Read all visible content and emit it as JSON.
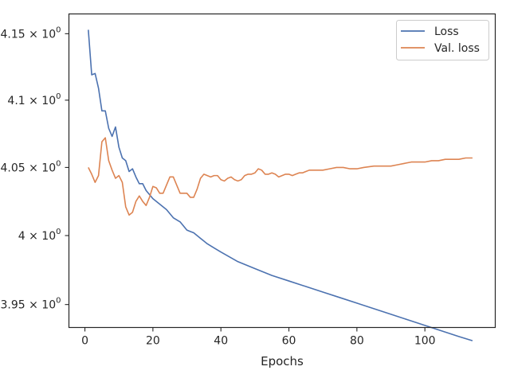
{
  "chart_data": {
    "type": "line",
    "title": "",
    "xlabel": "Epochs",
    "ylabel": "",
    "yscale": "log",
    "xlim": [
      -4.7,
      120.7
    ],
    "ylim": [
      3.9335,
      4.165
    ],
    "grid": false,
    "legend_position": "top-right",
    "x_ticks": [
      {
        "value": 0,
        "label": "0"
      },
      {
        "value": 20,
        "label": "20"
      },
      {
        "value": 40,
        "label": "40"
      },
      {
        "value": 60,
        "label": "60"
      },
      {
        "value": 80,
        "label": "80"
      },
      {
        "value": 100,
        "label": "100"
      }
    ],
    "y_ticks": [
      {
        "value": 3.95,
        "base": "3.95",
        "sup": "0"
      },
      {
        "value": 4.0,
        "base": "4",
        "sup": "0"
      },
      {
        "value": 4.05,
        "base": "4.05",
        "sup": "0"
      },
      {
        "value": 4.1,
        "base": "4.1",
        "sup": "0"
      },
      {
        "value": 4.15,
        "base": "4.15",
        "sup": "0"
      }
    ],
    "series": [
      {
        "name": "Loss",
        "color": "#4c72b0",
        "points": [
          [
            1,
            4.153
          ],
          [
            2,
            4.119
          ],
          [
            3,
            4.12
          ],
          [
            4,
            4.109
          ],
          [
            5,
            4.092
          ],
          [
            6,
            4.092
          ],
          [
            7,
            4.079
          ],
          [
            8,
            4.073
          ],
          [
            9,
            4.08
          ],
          [
            10,
            4.065
          ],
          [
            11,
            4.057
          ],
          [
            12,
            4.055
          ],
          [
            13,
            4.047
          ],
          [
            14,
            4.049
          ],
          [
            15,
            4.043
          ],
          [
            16,
            4.038
          ],
          [
            17,
            4.038
          ],
          [
            18,
            4.033
          ],
          [
            19,
            4.03
          ],
          [
            20,
            4.027
          ],
          [
            22,
            4.023
          ],
          [
            24,
            4.019
          ],
          [
            26,
            4.013
          ],
          [
            28,
            4.01
          ],
          [
            30,
            4.004
          ],
          [
            31,
            4.003
          ],
          [
            32,
            4.002
          ],
          [
            34,
            3.998
          ],
          [
            36,
            3.994
          ],
          [
            38,
            3.991
          ],
          [
            40,
            3.988
          ],
          [
            45,
            3.981
          ],
          [
            50,
            3.976
          ],
          [
            55,
            3.971
          ],
          [
            60,
            3.967
          ],
          [
            65,
            3.963
          ],
          [
            70,
            3.959
          ],
          [
            75,
            3.955
          ],
          [
            80,
            3.951
          ],
          [
            85,
            3.947
          ],
          [
            90,
            3.943
          ],
          [
            95,
            3.939
          ],
          [
            100,
            3.935
          ],
          [
            105,
            3.931
          ],
          [
            110,
            3.927
          ],
          [
            114,
            3.924
          ]
        ]
      },
      {
        "name": "Val. loss",
        "color": "#dd8452",
        "points": [
          [
            1,
            4.05
          ],
          [
            2,
            4.045
          ],
          [
            3,
            4.039
          ],
          [
            4,
            4.044
          ],
          [
            5,
            4.069
          ],
          [
            6,
            4.072
          ],
          [
            7,
            4.055
          ],
          [
            8,
            4.048
          ],
          [
            9,
            4.042
          ],
          [
            10,
            4.044
          ],
          [
            11,
            4.039
          ],
          [
            12,
            4.021
          ],
          [
            13,
            4.015
          ],
          [
            14,
            4.017
          ],
          [
            15,
            4.025
          ],
          [
            16,
            4.029
          ],
          [
            17,
            4.025
          ],
          [
            18,
            4.022
          ],
          [
            19,
            4.028
          ],
          [
            20,
            4.036
          ],
          [
            21,
            4.035
          ],
          [
            22,
            4.031
          ],
          [
            23,
            4.031
          ],
          [
            24,
            4.037
          ],
          [
            25,
            4.043
          ],
          [
            26,
            4.043
          ],
          [
            27,
            4.037
          ],
          [
            28,
            4.031
          ],
          [
            29,
            4.031
          ],
          [
            30,
            4.031
          ],
          [
            31,
            4.028
          ],
          [
            32,
            4.028
          ],
          [
            33,
            4.034
          ],
          [
            34,
            4.042
          ],
          [
            35,
            4.045
          ],
          [
            36,
            4.044
          ],
          [
            37,
            4.043
          ],
          [
            38,
            4.044
          ],
          [
            39,
            4.044
          ],
          [
            40,
            4.041
          ],
          [
            41,
            4.04
          ],
          [
            42,
            4.042
          ],
          [
            43,
            4.043
          ],
          [
            44,
            4.041
          ],
          [
            45,
            4.04
          ],
          [
            46,
            4.041
          ],
          [
            47,
            4.044
          ],
          [
            48,
            4.045
          ],
          [
            49,
            4.045
          ],
          [
            50,
            4.046
          ],
          [
            51,
            4.049
          ],
          [
            52,
            4.048
          ],
          [
            53,
            4.045
          ],
          [
            54,
            4.045
          ],
          [
            55,
            4.046
          ],
          [
            56,
            4.045
          ],
          [
            57,
            4.043
          ],
          [
            58,
            4.044
          ],
          [
            59,
            4.045
          ],
          [
            60,
            4.045
          ],
          [
            61,
            4.044
          ],
          [
            62,
            4.045
          ],
          [
            63,
            4.046
          ],
          [
            64,
            4.046
          ],
          [
            65,
            4.047
          ],
          [
            66,
            4.048
          ],
          [
            67,
            4.048
          ],
          [
            68,
            4.048
          ],
          [
            70,
            4.048
          ],
          [
            72,
            4.049
          ],
          [
            74,
            4.05
          ],
          [
            76,
            4.05
          ],
          [
            78,
            4.049
          ],
          [
            80,
            4.049
          ],
          [
            82,
            4.05
          ],
          [
            85,
            4.051
          ],
          [
            88,
            4.051
          ],
          [
            90,
            4.051
          ],
          [
            92,
            4.052
          ],
          [
            94,
            4.053
          ],
          [
            96,
            4.054
          ],
          [
            98,
            4.054
          ],
          [
            100,
            4.054
          ],
          [
            102,
            4.055
          ],
          [
            104,
            4.055
          ],
          [
            106,
            4.056
          ],
          [
            108,
            4.056
          ],
          [
            110,
            4.056
          ],
          [
            112,
            4.057
          ],
          [
            114,
            4.057
          ]
        ]
      }
    ]
  }
}
